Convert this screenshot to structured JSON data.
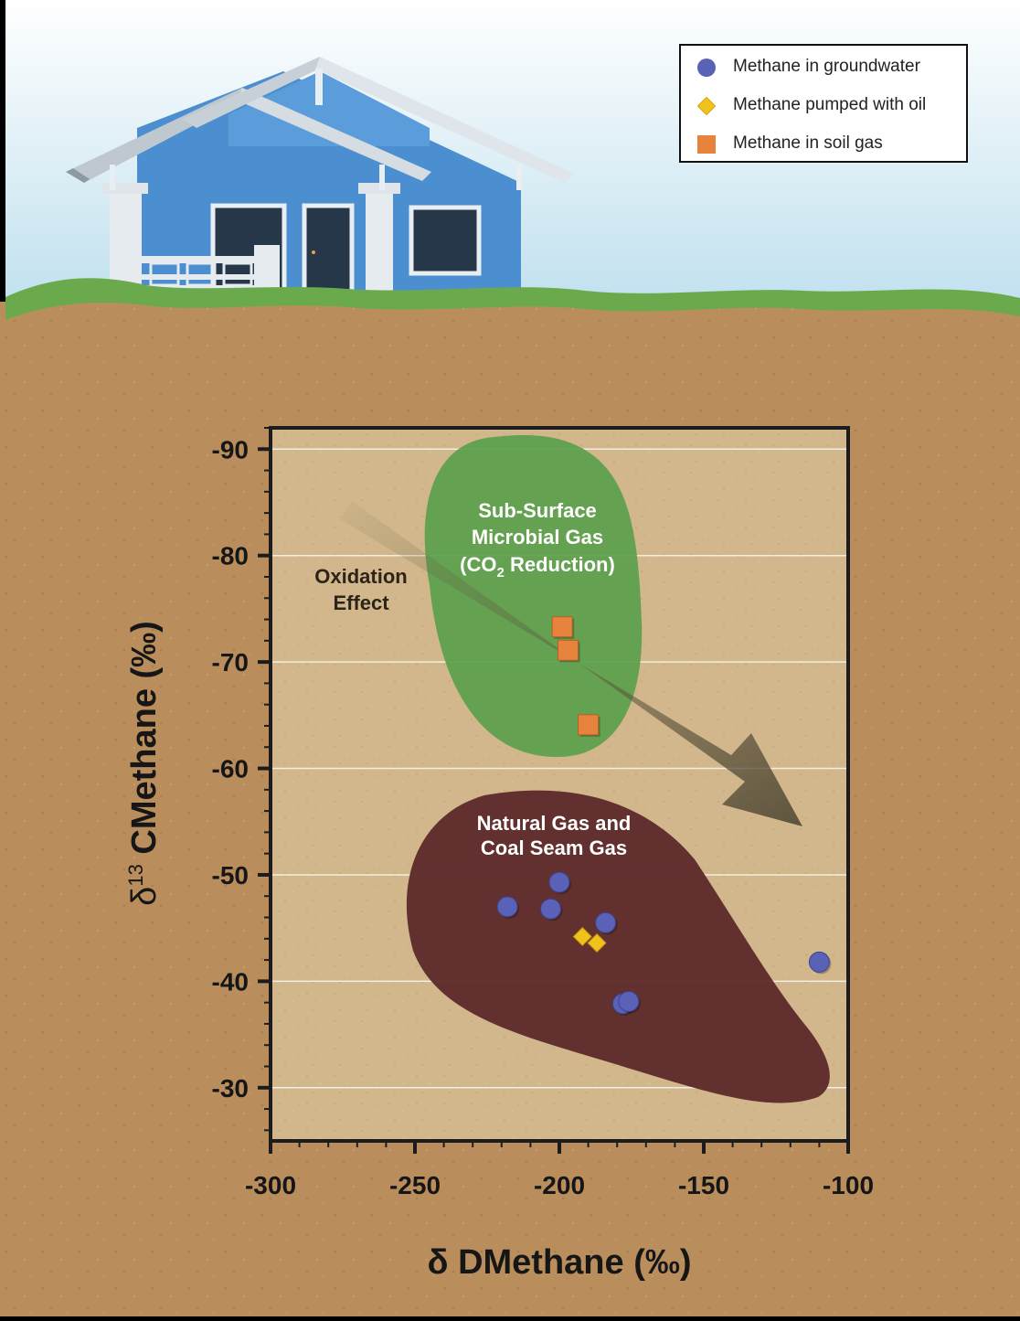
{
  "legend": {
    "items": [
      {
        "label": "Methane in groundwater",
        "shape": "circle",
        "color": "#5a62b8"
      },
      {
        "label": "Methane pumped with oil",
        "shape": "diamond",
        "color": "#f2c21c"
      },
      {
        "label": "Methane in soil gas",
        "shape": "square",
        "color": "#e8833e"
      }
    ]
  },
  "regions": {
    "microbial": {
      "line1": "Sub-Surface",
      "line2": "Microbial Gas",
      "line3_pre": "(CO",
      "line3_sub": "2",
      "line3_post": " Reduction)",
      "color": "#5aa04c"
    },
    "natural": {
      "line1": "Natural Gas and",
      "line2": "Coal Seam Gas",
      "color": "#5e2c2c"
    },
    "oxidation": {
      "line1": "Oxidation",
      "line2": "Effect"
    }
  },
  "colors": {
    "sky": "#cfe8f2",
    "soil": "#b98e5c",
    "plot_bg": "#d6bd92",
    "grass": "#6aaa4c",
    "house": "#4c8fd0"
  },
  "chart_data": {
    "type": "scatter",
    "title": "",
    "xlabel": "δ DMethane (‰)",
    "ylabel_pre": "δ",
    "ylabel_sup": "13",
    "ylabel_post": " CMethane (‰)",
    "xlim": [
      -300,
      -100
    ],
    "ylim": [
      -25,
      -92
    ],
    "x_ticks": [
      -300,
      -250,
      -200,
      -150,
      -100
    ],
    "y_ticks": [
      -90,
      -80,
      -70,
      -60,
      -50,
      -40,
      -30
    ],
    "x_tick_labels": [
      "-300",
      "-250",
      "-200",
      "-150",
      "-100"
    ],
    "y_tick_labels": [
      "-90",
      "-80",
      "-70",
      "-60",
      "-50",
      "-40",
      "-30"
    ],
    "grid": true,
    "series": [
      {
        "name": "Methane in groundwater",
        "shape": "circle",
        "color": "#5a62b8",
        "points": [
          {
            "x": -218,
            "y": -47
          },
          {
            "x": -203,
            "y": -46.8
          },
          {
            "x": -200,
            "y": -49.3
          },
          {
            "x": -184,
            "y": -45.5
          },
          {
            "x": -178,
            "y": -37.9
          },
          {
            "x": -176,
            "y": -38.1
          },
          {
            "x": -110,
            "y": -41.8
          }
        ]
      },
      {
        "name": "Methane pumped with oil",
        "shape": "diamond",
        "color": "#f2c21c",
        "points": [
          {
            "x": -192,
            "y": -44.2
          },
          {
            "x": -187,
            "y": -43.6
          }
        ]
      },
      {
        "name": "Methane in soil gas",
        "shape": "square",
        "color": "#e8833e",
        "points": [
          {
            "x": -199,
            "y": -73.3
          },
          {
            "x": -197,
            "y": -71.1
          },
          {
            "x": -190,
            "y": -64.1
          }
        ]
      }
    ]
  }
}
